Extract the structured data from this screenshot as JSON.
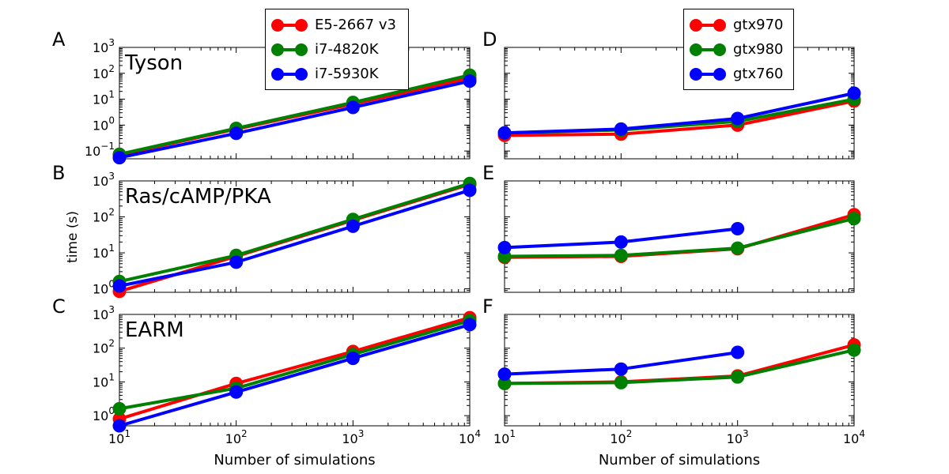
{
  "chart_data": {
    "type": "line",
    "x_scale": "log",
    "y_scale": "log",
    "y_axis_label": "time (s)",
    "x_axis_label": "Number of simulations",
    "x_ticks": [
      10,
      100,
      1000,
      10000
    ],
    "x_tick_labels": [
      {
        "base": "10",
        "exp": "1"
      },
      {
        "base": "10",
        "exp": "2"
      },
      {
        "base": "10",
        "exp": "3"
      },
      {
        "base": "10",
        "exp": "4"
      }
    ],
    "legends": [
      {
        "column": "left",
        "entries": [
          {
            "name": "E5-2667 v3",
            "color": "#ff0000"
          },
          {
            "name": "i7-4820K",
            "color": "#008000"
          },
          {
            "name": "i7-5930K",
            "color": "#0000ff"
          }
        ]
      },
      {
        "column": "right",
        "entries": [
          {
            "name": "gtx970",
            "color": "#ff0000"
          },
          {
            "name": "gtx980",
            "color": "#008000"
          },
          {
            "name": "gtx760",
            "color": "#0000ff"
          }
        ]
      }
    ],
    "panels": [
      {
        "letter": "A",
        "title": "Tyson",
        "column": "left",
        "row": 0,
        "ylim": [
          0.05,
          1000
        ],
        "y_ticks": [
          {
            "value": 0.1,
            "base": "10",
            "exp": "−1"
          },
          {
            "value": 1,
            "base": "10",
            "exp": "0"
          },
          {
            "value": 10,
            "base": "10",
            "exp": "1"
          },
          {
            "value": 100,
            "base": "10",
            "exp": "2"
          },
          {
            "value": 1000,
            "base": "10",
            "exp": "3"
          }
        ],
        "series": [
          {
            "name": "E5-2667 v3",
            "color": "#ff0000",
            "x": [
              10,
              100,
              1000,
              10000
            ],
            "y": [
              0.07,
              0.7,
              6.5,
              65
            ]
          },
          {
            "name": "i7-4820K",
            "color": "#008000",
            "x": [
              10,
              100,
              1000,
              10000
            ],
            "y": [
              0.075,
              0.75,
              7.5,
              85
            ]
          },
          {
            "name": "i7-5930K",
            "color": "#0000ff",
            "x": [
              10,
              100,
              1000,
              10000
            ],
            "y": [
              0.055,
              0.48,
              4.8,
              50
            ]
          }
        ]
      },
      {
        "letter": "B",
        "title": "Ras/cAMP/PKA",
        "column": "left",
        "row": 1,
        "ylim": [
          0.8,
          1000
        ],
        "y_ticks": [
          {
            "value": 1,
            "base": "10",
            "exp": "0"
          },
          {
            "value": 10,
            "base": "10",
            "exp": "1"
          },
          {
            "value": 100,
            "base": "10",
            "exp": "2"
          },
          {
            "value": 1000,
            "base": "10",
            "exp": "3"
          }
        ],
        "series": [
          {
            "name": "E5-2667 v3",
            "color": "#ff0000",
            "x": [
              10,
              100,
              1000,
              10000
            ],
            "y": [
              0.85,
              8,
              80,
              800
            ]
          },
          {
            "name": "i7-4820K",
            "color": "#008000",
            "x": [
              10,
              100,
              1000,
              10000
            ],
            "y": [
              1.6,
              8.5,
              85,
              850
            ]
          },
          {
            "name": "i7-5930K",
            "color": "#0000ff",
            "x": [
              10,
              100,
              1000,
              10000
            ],
            "y": [
              1.2,
              5.5,
              55,
              550
            ]
          }
        ]
      },
      {
        "letter": "C",
        "title": "EARM",
        "column": "left",
        "row": 2,
        "ylim": [
          0.5,
          1000
        ],
        "y_ticks": [
          {
            "value": 1,
            "base": "10",
            "exp": "0"
          },
          {
            "value": 10,
            "base": "10",
            "exp": "1"
          },
          {
            "value": 100,
            "base": "10",
            "exp": "2"
          },
          {
            "value": 1000,
            "base": "10",
            "exp": "3"
          }
        ],
        "series": [
          {
            "name": "E5-2667 v3",
            "color": "#ff0000",
            "x": [
              10,
              100,
              1000,
              10000
            ],
            "y": [
              0.8,
              9,
              80,
              800
            ]
          },
          {
            "name": "i7-4820K",
            "color": "#008000",
            "x": [
              10,
              100,
              1000,
              10000
            ],
            "y": [
              1.6,
              6.5,
              65,
              650
            ]
          },
          {
            "name": "i7-5930K",
            "color": "#0000ff",
            "x": [
              10,
              100,
              1000,
              10000
            ],
            "y": [
              0.5,
              5,
              50,
              500
            ]
          }
        ]
      },
      {
        "letter": "D",
        "title": "",
        "column": "right",
        "row": 0,
        "ylim": [
          0.05,
          1000
        ],
        "y_ticks": [],
        "series": [
          {
            "name": "gtx970",
            "color": "#ff0000",
            "x": [
              10,
              100,
              1000,
              10000
            ],
            "y": [
              0.4,
              0.45,
              1.0,
              8.5
            ]
          },
          {
            "name": "gtx980",
            "color": "#008000",
            "x": [
              10,
              100,
              1000,
              10000
            ],
            "y": [
              0.5,
              0.65,
              1.4,
              10
            ]
          },
          {
            "name": "gtx760",
            "color": "#0000ff",
            "x": [
              10,
              100,
              1000,
              10000
            ],
            "y": [
              0.5,
              0.7,
              1.8,
              17
            ]
          }
        ]
      },
      {
        "letter": "E",
        "title": "",
        "column": "right",
        "row": 1,
        "ylim": [
          0.8,
          1000
        ],
        "y_ticks": [],
        "series": [
          {
            "name": "gtx970",
            "color": "#ff0000",
            "x": [
              10,
              100,
              1000,
              10000
            ],
            "y": [
              7.5,
              8,
              13,
              115
            ]
          },
          {
            "name": "gtx980",
            "color": "#008000",
            "x": [
              10,
              100,
              1000,
              10000
            ],
            "y": [
              8,
              8.5,
              13.5,
              90
            ]
          },
          {
            "name": "gtx760",
            "color": "#0000ff",
            "x": [
              10,
              100,
              1000
            ],
            "y": [
              14,
              20,
              47
            ]
          }
        ]
      },
      {
        "letter": "F",
        "title": "",
        "column": "right",
        "row": 2,
        "ylim": [
          0.5,
          1000
        ],
        "y_ticks": [],
        "series": [
          {
            "name": "gtx970",
            "color": "#ff0000",
            "x": [
              10,
              100,
              1000,
              10000
            ],
            "y": [
              9,
              10,
              15,
              125
            ]
          },
          {
            "name": "gtx980",
            "color": "#008000",
            "x": [
              10,
              100,
              1000,
              10000
            ],
            "y": [
              9,
              9.5,
              14,
              88
            ]
          },
          {
            "name": "gtx760",
            "color": "#0000ff",
            "x": [
              10,
              100,
              1000
            ],
            "y": [
              17,
              24,
              75
            ]
          }
        ]
      }
    ]
  }
}
